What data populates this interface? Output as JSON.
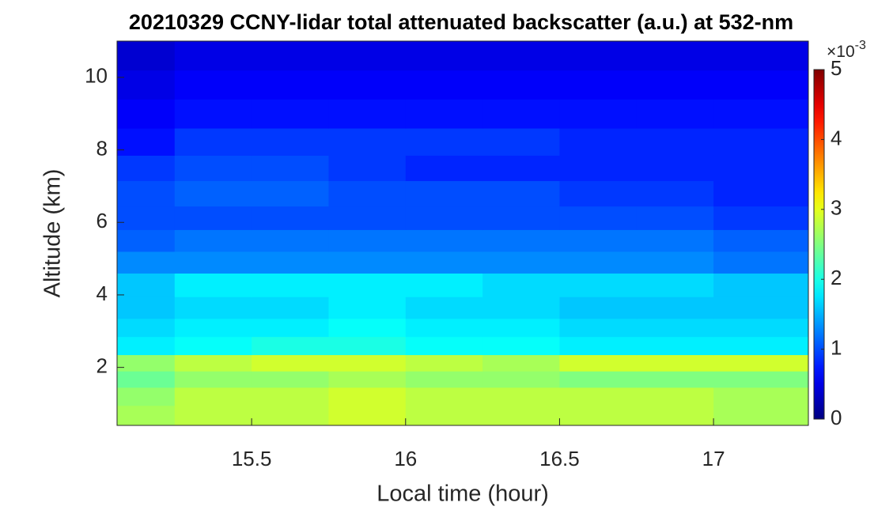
{
  "chart_data": {
    "type": "heatmap",
    "title": "20210329 CCNY-lidar total attenuated backscatter (a.u.) at 532-nm",
    "x_label": "Local time (hour)",
    "y_label": "Altitude (km)",
    "x": [
      15.125,
      15.375,
      15.625,
      15.875,
      16.125,
      16.375,
      16.625,
      16.875,
      17.125
    ],
    "y": [
      0.7,
      1.2,
      1.7,
      2.1,
      2.6,
      3.1,
      3.6,
      4.3,
      4.9,
      5.5,
      6.1,
      6.8,
      7.5,
      8.2,
      9.0,
      9.8,
      10.6
    ],
    "z": [
      [
        2.7,
        2.8,
        2.8,
        2.9,
        2.8,
        2.8,
        2.8,
        2.8,
        2.7
      ],
      [
        2.6,
        2.8,
        2.8,
        2.9,
        2.8,
        2.8,
        2.8,
        2.8,
        2.7
      ],
      [
        2.4,
        2.6,
        2.6,
        2.7,
        2.6,
        2.6,
        2.5,
        2.5,
        2.5
      ],
      [
        2.6,
        2.8,
        2.9,
        2.9,
        2.8,
        2.7,
        2.9,
        2.9,
        2.9
      ],
      [
        1.8,
        1.9,
        2.0,
        2.0,
        1.9,
        1.9,
        1.8,
        1.8,
        1.8
      ],
      [
        1.7,
        1.8,
        1.8,
        1.9,
        1.8,
        1.8,
        1.7,
        1.7,
        1.7
      ],
      [
        1.6,
        1.7,
        1.7,
        1.8,
        1.7,
        1.7,
        1.6,
        1.6,
        1.6
      ],
      [
        1.6,
        1.8,
        1.8,
        1.8,
        1.8,
        1.7,
        1.7,
        1.7,
        1.6
      ],
      [
        1.3,
        1.3,
        1.3,
        1.3,
        1.3,
        1.3,
        1.3,
        1.3,
        1.2
      ],
      [
        1.1,
        1.2,
        1.2,
        1.2,
        1.2,
        1.2,
        1.2,
        1.2,
        1.1
      ],
      [
        1.0,
        1.0,
        1.0,
        1.0,
        1.0,
        1.0,
        1.0,
        1.0,
        0.9
      ],
      [
        1.0,
        1.1,
        1.1,
        1.0,
        1.0,
        1.0,
        0.9,
        0.9,
        0.8
      ],
      [
        0.9,
        1.0,
        1.0,
        0.9,
        0.8,
        0.8,
        0.8,
        0.8,
        0.8
      ],
      [
        0.7,
        0.9,
        0.9,
        0.9,
        0.9,
        0.9,
        0.8,
        0.8,
        0.8
      ],
      [
        0.6,
        0.7,
        0.7,
        0.7,
        0.7,
        0.7,
        0.7,
        0.7,
        0.7
      ],
      [
        0.5,
        0.6,
        0.6,
        0.6,
        0.6,
        0.6,
        0.6,
        0.6,
        0.6
      ],
      [
        0.4,
        0.5,
        0.5,
        0.5,
        0.5,
        0.5,
        0.5,
        0.5,
        0.5
      ]
    ],
    "xlim": [
      15.063,
      17.308
    ],
    "ylim": [
      0.4,
      11
    ],
    "xticks": [
      15.5,
      16,
      16.5,
      17
    ],
    "yticks": [
      2,
      4,
      6,
      8,
      10
    ],
    "colormap": "jet",
    "colorbar": {
      "lim": [
        0,
        5
      ],
      "ticks": [
        0,
        1,
        2,
        3,
        4,
        5
      ],
      "multiplier": "×10",
      "exponent": "-3"
    }
  }
}
